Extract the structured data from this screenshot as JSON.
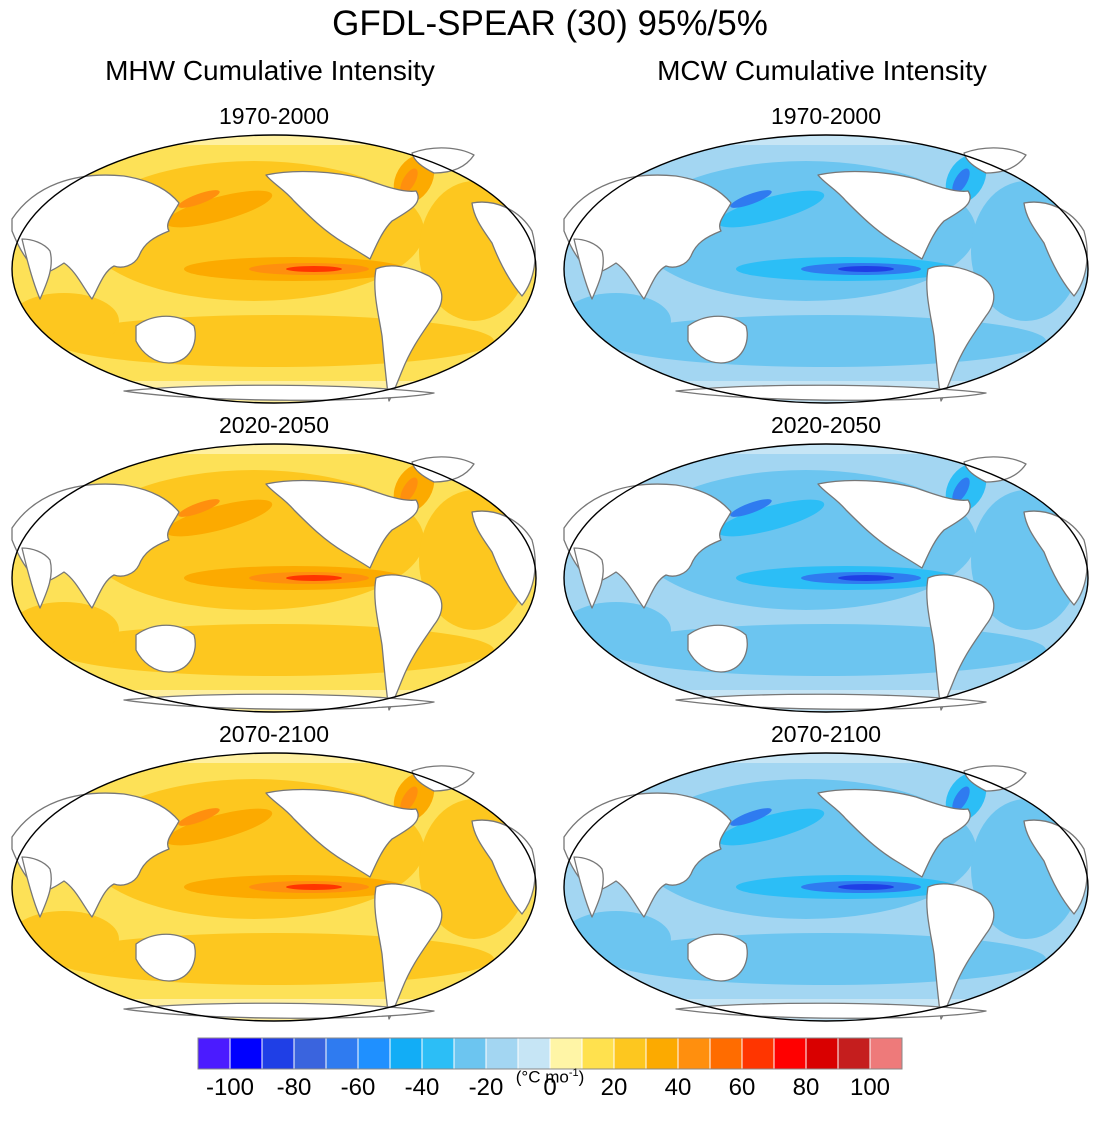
{
  "title": "GFDL-SPEAR (30) 95%/5%",
  "columns": [
    {
      "title": "MHW Cumulative Intensity",
      "kind": "warm"
    },
    {
      "title": "MCW Cumulative Intensity",
      "kind": "cold"
    }
  ],
  "periods": [
    "1970-2000",
    "2020-2050",
    "2070-2100"
  ],
  "colorbar": {
    "colors": [
      "#4b1bff",
      "#0000ff",
      "#1f3fe6",
      "#3a64de",
      "#2f7bf0",
      "#1f90ff",
      "#12adf6",
      "#2cbef6",
      "#6cc5f0",
      "#a3d6f2",
      "#c6e5f5",
      "#fff5a6",
      "#ffe14e",
      "#fdc71f",
      "#fcaa00",
      "#ff8f0e",
      "#ff6c00",
      "#ff3500",
      "#ff0000",
      "#d90000",
      "#c51e1e",
      "#ee7a7a"
    ],
    "tick_labels": [
      "-100",
      "-80",
      "-60",
      "-40",
      "-20",
      "0",
      "20",
      "40",
      "60",
      "80",
      "100"
    ],
    "units": "(°C mo",
    "units_sup": "-1",
    "units_close": ")"
  },
  "chart_data": {
    "type": "heatmap",
    "description_fields": [
      "variable",
      "period",
      "dominant_level"
    ],
    "panels": [
      {
        "variable": "MHW Cumulative Intensity",
        "period": "1970-2000",
        "dominant_level": 20,
        "max_level": 80
      },
      {
        "variable": "MHW Cumulative Intensity",
        "period": "2020-2050",
        "dominant_level": 30,
        "max_level": 80
      },
      {
        "variable": "MHW Cumulative Intensity",
        "period": "2070-2100",
        "dominant_level": 30,
        "max_level": 60
      },
      {
        "variable": "MCW Cumulative Intensity",
        "period": "1970-2000",
        "dominant_level": -20,
        "min_level": -70
      },
      {
        "variable": "MCW Cumulative Intensity",
        "period": "2020-2050",
        "dominant_level": -30,
        "min_level": -80
      },
      {
        "variable": "MCW Cumulative Intensity",
        "period": "2070-2100",
        "dominant_level": -30,
        "min_level": -70
      }
    ],
    "colorbar_range": [
      -100,
      100
    ]
  }
}
